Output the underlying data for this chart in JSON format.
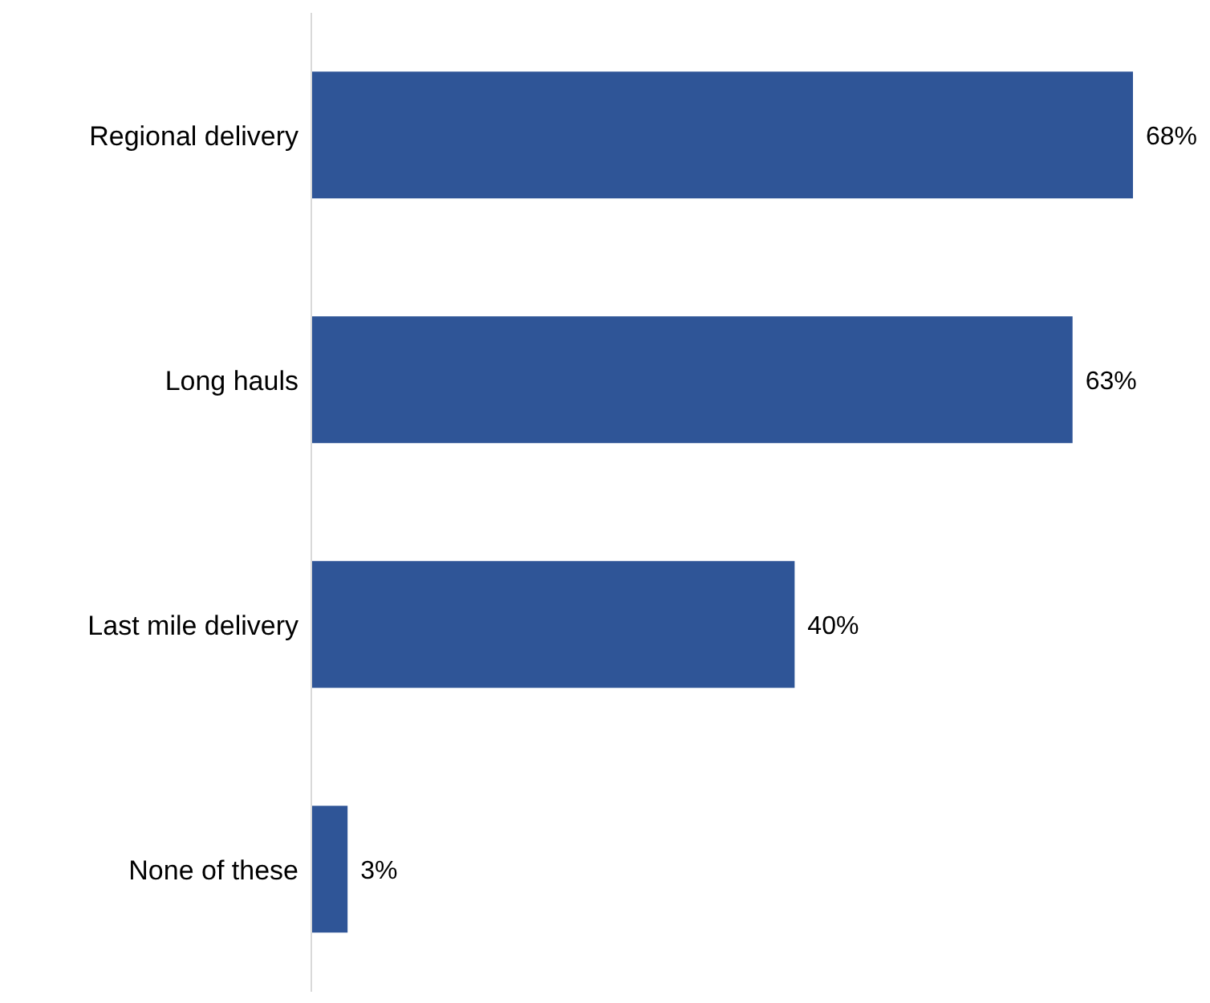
{
  "chart_data": {
    "type": "bar",
    "orientation": "horizontal",
    "categories": [
      "Regional delivery",
      "Long hauls",
      "Last mile delivery",
      "None of these"
    ],
    "values": [
      68,
      63,
      40,
      3
    ],
    "value_labels": [
      "68%",
      "63%",
      "40%",
      "3%"
    ],
    "color": "#2f5597"
  }
}
